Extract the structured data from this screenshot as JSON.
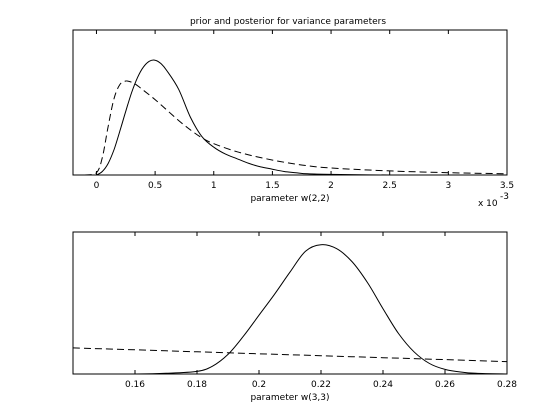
{
  "chart_data": [
    {
      "type": "line",
      "title": "prior and posterior for variance parameters",
      "xlabel": "parameter w(2,2)",
      "ylabel": "",
      "x_exponent_label": "x 10",
      "x_exponent_power": "-3",
      "xlim": [
        -0.0002,
        0.0035
      ],
      "ylim": [
        0,
        1
      ],
      "x_ticks": [
        0,
        0.0005,
        0.001,
        0.0015,
        0.002,
        0.0025,
        0.003,
        0.0035
      ],
      "x_tick_labels": [
        "0",
        "0.5",
        "1",
        "1.5",
        "2",
        "2.5",
        "3",
        "3.5"
      ],
      "grid": false,
      "series": [
        {
          "style": "solid",
          "x": [
            0,
            5e-05,
            0.0001,
            0.00015,
            0.0002,
            0.00025,
            0.0003,
            0.00035,
            0.0004,
            0.00045,
            0.0005,
            0.00055,
            0.0006,
            0.0007,
            0.0008,
            0.0009,
            0.001,
            0.0011,
            0.0012,
            0.0013,
            0.0014,
            0.0015,
            0.0016,
            0.0017,
            0.0018,
            0.002,
            0.0025,
            0.003,
            0.0035
          ],
          "values": [
            0,
            0.03,
            0.1,
            0.22,
            0.38,
            0.55,
            0.71,
            0.84,
            0.93,
            0.98,
            0.99,
            0.96,
            0.9,
            0.74,
            0.5,
            0.33,
            0.24,
            0.18,
            0.14,
            0.1,
            0.07,
            0.05,
            0.03,
            0.02,
            0.01,
            0.005,
            0,
            0,
            0
          ]
        },
        {
          "style": "dashed",
          "x": [
            -0.0001,
            0,
            5e-05,
            0.0001,
            0.00015,
            0.0002,
            0.00025,
            0.0003,
            0.00035,
            0.0004,
            0.0005,
            0.0006,
            0.0007,
            0.0008,
            0.0009,
            0.001,
            0.0012,
            0.0014,
            0.0016,
            0.0018,
            0.002,
            0.0025,
            0.003,
            0.0035
          ],
          "values": [
            0,
            0.02,
            0.15,
            0.42,
            0.66,
            0.78,
            0.81,
            0.8,
            0.77,
            0.73,
            0.65,
            0.56,
            0.47,
            0.39,
            0.32,
            0.27,
            0.2,
            0.15,
            0.11,
            0.08,
            0.06,
            0.035,
            0.02,
            0.01
          ]
        }
      ]
    },
    {
      "type": "line",
      "title": "",
      "xlabel": "parameter w(3,3)",
      "ylabel": "",
      "xlim": [
        0.14,
        0.28
      ],
      "ylim": [
        0,
        1
      ],
      "x_ticks": [
        0.16,
        0.18,
        0.2,
        0.22,
        0.24,
        0.26,
        0.28
      ],
      "x_tick_labels": [
        "0.16",
        "0.18",
        "0.2",
        "0.22",
        "0.24",
        "0.26",
        "0.28"
      ],
      "grid": false,
      "series": [
        {
          "style": "solid",
          "x": [
            0.14,
            0.16,
            0.17,
            0.18,
            0.185,
            0.19,
            0.195,
            0.2,
            0.205,
            0.21,
            0.215,
            0.22,
            0.225,
            0.23,
            0.235,
            0.24,
            0.245,
            0.25,
            0.255,
            0.26,
            0.265,
            0.27,
            0.28
          ],
          "values": [
            0,
            0,
            0.005,
            0.02,
            0.06,
            0.15,
            0.29,
            0.45,
            0.61,
            0.78,
            0.94,
            0.99,
            0.96,
            0.86,
            0.7,
            0.5,
            0.31,
            0.17,
            0.08,
            0.035,
            0.015,
            0.005,
            0
          ]
        },
        {
          "style": "dashed",
          "x": [
            0.14,
            0.16,
            0.18,
            0.2,
            0.22,
            0.24,
            0.26,
            0.28
          ],
          "values": [
            0.2,
            0.185,
            0.17,
            0.155,
            0.14,
            0.125,
            0.11,
            0.095
          ]
        }
      ]
    }
  ]
}
